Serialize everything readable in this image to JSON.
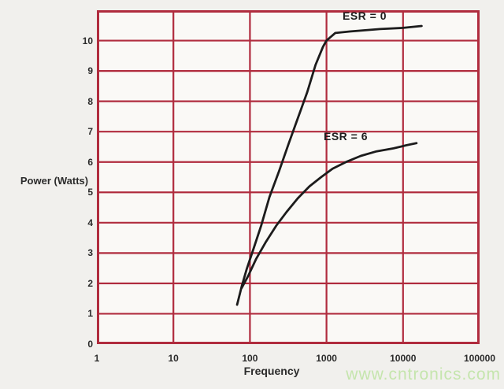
{
  "colors": {
    "background": "#f1f0ed",
    "plot_background": "#faf9f6",
    "grid": "#b02c3e",
    "curve": "#1c1c1c",
    "text": "#2b2b2b",
    "watermark": "#c5e5ad"
  },
  "watermark": {
    "text": "www.cntronics.com"
  },
  "chart_data": {
    "type": "line",
    "title": "",
    "xlabel": "Frequency",
    "ylabel": "Power (Watts)",
    "x_scale": "log",
    "xlim": [
      1,
      100000
    ],
    "ylim": [
      0,
      11
    ],
    "x_ticks": [
      1,
      10,
      100,
      1000,
      10000,
      100000
    ],
    "x_tick_labels": [
      "1",
      "10",
      "100",
      "1000",
      "10000",
      "100000"
    ],
    "y_ticks": [
      0,
      1,
      2,
      3,
      4,
      5,
      6,
      7,
      8,
      9,
      10
    ],
    "y_tick_labels": [
      "0",
      "1",
      "2",
      "3",
      "4",
      "5",
      "6",
      "7",
      "8",
      "9",
      "10"
    ],
    "grid": true,
    "legend": "inline-labels",
    "series": [
      {
        "name": "ESR = 0",
        "points": [
          [
            68,
            1.3
          ],
          [
            78,
            1.9
          ],
          [
            90,
            2.45
          ],
          [
            110,
            3.1
          ],
          [
            140,
            3.9
          ],
          [
            180,
            4.85
          ],
          [
            240,
            5.7
          ],
          [
            320,
            6.6
          ],
          [
            430,
            7.5
          ],
          [
            560,
            8.3
          ],
          [
            720,
            9.2
          ],
          [
            900,
            9.8
          ],
          [
            1000,
            10.0
          ],
          [
            1300,
            10.25
          ],
          [
            2000,
            10.3
          ],
          [
            5000,
            10.38
          ],
          [
            10000,
            10.42
          ],
          [
            17500,
            10.48
          ]
        ]
      },
      {
        "name": "ESR = 6",
        "points": [
          [
            78,
            1.85
          ],
          [
            95,
            2.25
          ],
          [
            120,
            2.8
          ],
          [
            160,
            3.35
          ],
          [
            220,
            3.9
          ],
          [
            300,
            4.35
          ],
          [
            420,
            4.8
          ],
          [
            600,
            5.2
          ],
          [
            850,
            5.5
          ],
          [
            1200,
            5.78
          ],
          [
            1800,
            6.0
          ],
          [
            2800,
            6.2
          ],
          [
            4500,
            6.35
          ],
          [
            7500,
            6.45
          ],
          [
            11000,
            6.55
          ],
          [
            15000,
            6.62
          ]
        ]
      }
    ]
  }
}
